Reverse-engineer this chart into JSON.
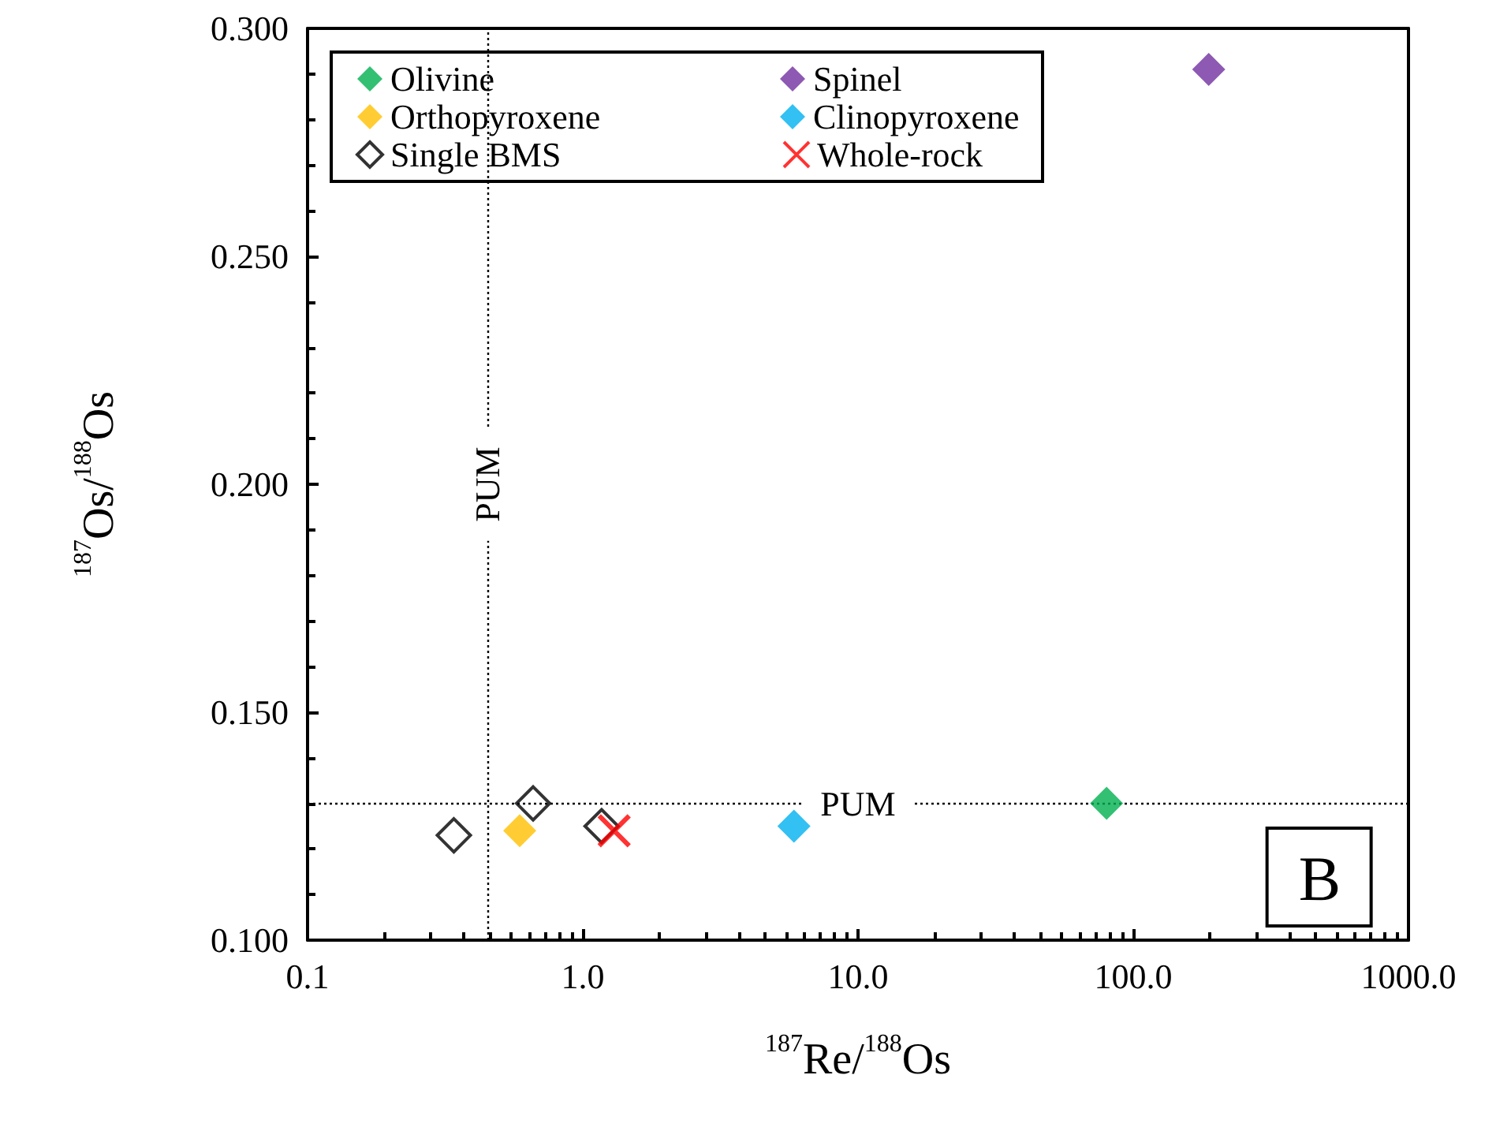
{
  "chart_data": {
    "type": "scatter",
    "xlabel": "$^{187}$Re/$^{188}$Os",
    "ylabel": "$^{187}$Os/$^{188}$Os",
    "log": "x",
    "xlim": [
      0.1,
      1000
    ],
    "xticks": [
      {
        "value": 0.1,
        "label": "0.1"
      },
      {
        "value": 1,
        "label": "1.0"
      },
      {
        "value": 10,
        "label": "10.0"
      },
      {
        "value": 100,
        "label": "100.0"
      },
      {
        "value": 1000,
        "label": "1000.0"
      }
    ],
    "ylim": [
      0.1,
      0.3
    ],
    "yticks": [
      {
        "value": 0.1,
        "label": "0.100"
      },
      {
        "value": 0.15,
        "label": "0.150"
      },
      {
        "value": 0.2,
        "label": "0.200"
      },
      {
        "value": 0.25,
        "label": "0.250"
      },
      {
        "value": 0.3,
        "label": "0.300"
      }
    ],
    "grid": false,
    "legend": "top left",
    "marker": "diamond",
    "series": [
      {
        "name": "Olivine",
        "color": "#00b050",
        "x": [
          80
        ],
        "values": [
          0.13
        ]
      },
      {
        "name": "Spinel",
        "color": "#7030a0",
        "x": [
          188
        ],
        "values": [
          0.291
        ]
      },
      {
        "name": "Orthopyroxene",
        "color": "#ffc000",
        "x": [
          0.59
        ],
        "values": [
          0.124
        ]
      },
      {
        "name": "Clinopyroxene",
        "color": "#00b0f0",
        "x": [
          5.85
        ],
        "values": [
          0.125
        ]
      },
      {
        "name": "Single BMS",
        "color": "#000000",
        "marker": "diamond-open",
        "x": [
          0.34,
          0.66,
          1.17
        ],
        "values": [
          0.123,
          0.13,
          0.125
        ]
      },
      {
        "name": "Whole-rock",
        "color": "#ff0000",
        "marker": "cross",
        "x": [
          1.3
        ],
        "values": [
          0.124
        ]
      }
    ],
    "ref_lines": [
      {
        "axis": "y",
        "value": 0.13,
        "label": "PUM",
        "line_style": "dotted"
      },
      {
        "axis": "x",
        "value": 0.45,
        "label": "PUM",
        "line_style": "dotted"
      }
    ],
    "annotations": [
      "B"
    ]
  }
}
